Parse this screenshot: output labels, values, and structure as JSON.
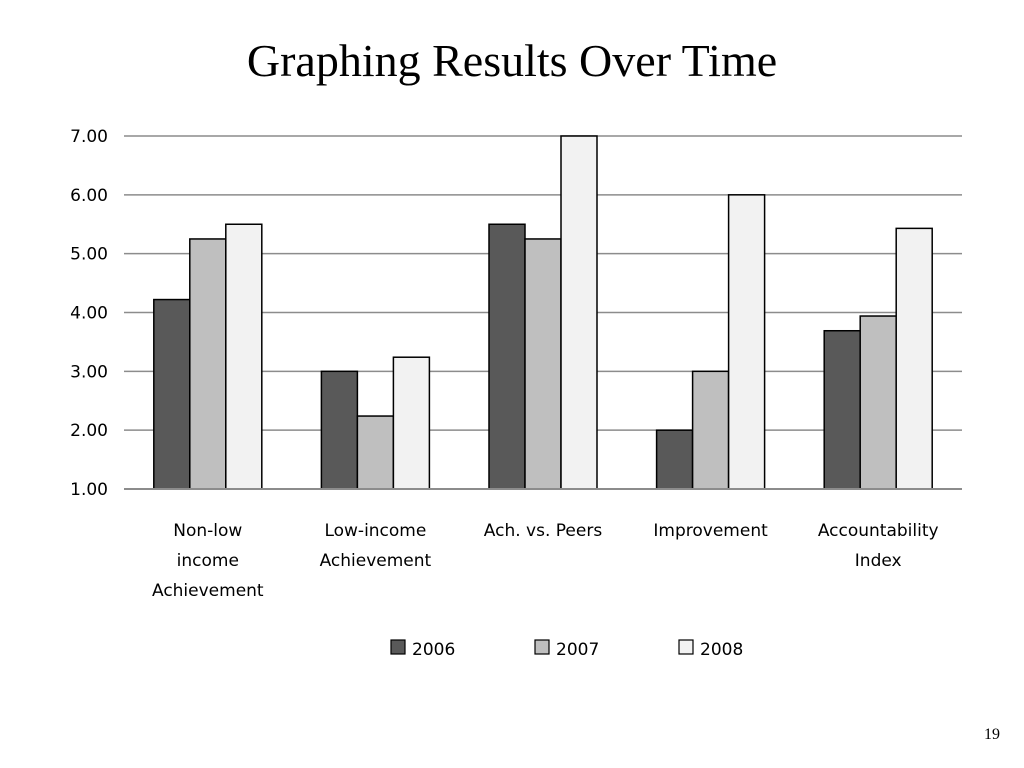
{
  "slide": {
    "title": "Graphing Results Over Time",
    "page_number": "19"
  },
  "chart_data": {
    "type": "bar",
    "title": "",
    "xlabel": "",
    "ylabel": "",
    "categories": [
      [
        "Non-low",
        "income",
        "Achievement"
      ],
      [
        "Low-income",
        "Achievement"
      ],
      [
        "Ach. vs. Peers"
      ],
      [
        "Improvement"
      ],
      [
        "Accountability",
        "Index"
      ]
    ],
    "series": [
      {
        "name": "2006",
        "color": "#595959",
        "values": [
          4.22,
          3.0,
          5.5,
          2.0,
          3.69
        ]
      },
      {
        "name": "2007",
        "color": "#bfbfbf",
        "values": [
          5.25,
          2.24,
          5.25,
          3.0,
          3.94
        ]
      },
      {
        "name": "2008",
        "color": "#f2f2f2",
        "values": [
          5.5,
          3.24,
          7.0,
          6.0,
          5.43
        ]
      }
    ],
    "ylim": [
      1.0,
      7.0
    ],
    "yticks": [
      "1.00",
      "2.00",
      "3.00",
      "4.00",
      "5.00",
      "6.00",
      "7.00"
    ],
    "grid": true,
    "legend_position": "bottom"
  }
}
